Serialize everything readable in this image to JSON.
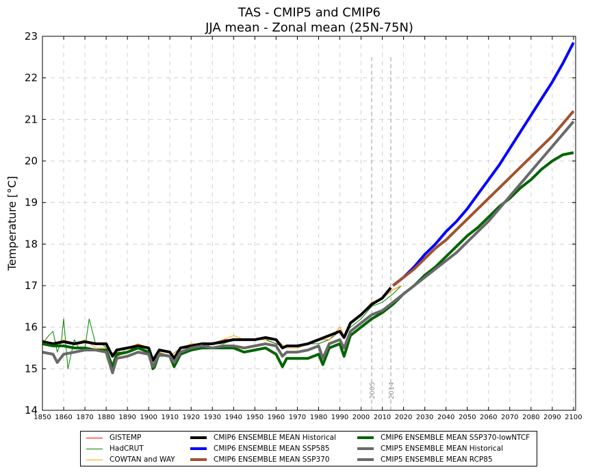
{
  "chart_data": {
    "type": "line",
    "title": "TAS - CMIP5 and CMIP6",
    "subtitle": "JJA mean - Zonal mean (25N-75N)",
    "xlabel": "",
    "ylabel": "Temperature [°C]",
    "xlim": [
      1850,
      2101
    ],
    "ylim": [
      14,
      23
    ],
    "grid": true,
    "x_ticks": [
      "1850",
      "1860",
      "1870",
      "1880",
      "1890",
      "1900",
      "1910",
      "1920",
      "1930",
      "1940",
      "1950",
      "1960",
      "1970",
      "1980",
      "1990",
      "2000",
      "2010",
      "2020",
      "2030",
      "2040",
      "2050",
      "2060",
      "2070",
      "2080",
      "2090",
      "2100"
    ],
    "y_ticks": [
      "14",
      "15",
      "16",
      "17",
      "18",
      "19",
      "20",
      "21",
      "22",
      "23"
    ],
    "vertical_markers": [
      {
        "x": 2005,
        "label": "2005"
      },
      {
        "x": 2014,
        "label": "2014"
      }
    ],
    "legend_position": "below",
    "series": [
      {
        "name": "GISTEMP",
        "color": "#ff0000",
        "style": "thin",
        "x": [
          1880,
          1885,
          1890,
          1895,
          1900,
          1903,
          1905,
          1910,
          1915,
          1920,
          1925,
          1930,
          1935,
          1940,
          1945,
          1950,
          1955,
          1960,
          1965,
          1970,
          1975,
          1980,
          1985,
          1990,
          1992,
          1995,
          2000,
          2005,
          2010,
          2015,
          2019
        ],
        "y": [
          15.5,
          15.3,
          15.4,
          15.6,
          15.5,
          15.1,
          15.4,
          15.3,
          15.5,
          15.5,
          15.6,
          15.6,
          15.7,
          15.7,
          15.7,
          15.7,
          15.7,
          15.6,
          15.5,
          15.5,
          15.6,
          15.7,
          15.7,
          16.0,
          15.8,
          16.1,
          16.3,
          16.6,
          16.7,
          16.9,
          17.0
        ]
      },
      {
        "name": "HadCRUT",
        "color": "#008000",
        "style": "thin",
        "x": [
          1850,
          1853,
          1855,
          1857,
          1859,
          1860,
          1862,
          1865,
          1867,
          1870,
          1872,
          1875,
          1878,
          1880,
          1883,
          1885,
          1890,
          1895,
          1900,
          1903,
          1905,
          1910,
          1915,
          1920,
          1925,
          1930,
          1935,
          1940,
          1945,
          1950,
          1955,
          1960,
          1965,
          1970,
          1975,
          1980,
          1985,
          1990,
          1992,
          1995,
          2000,
          2005,
          2010,
          2015,
          2019
        ],
        "y": [
          15.6,
          15.8,
          15.9,
          15.4,
          15.7,
          16.2,
          15.0,
          15.7,
          15.5,
          15.5,
          16.2,
          15.6,
          15.6,
          15.5,
          15.0,
          15.4,
          15.4,
          15.5,
          15.4,
          15.0,
          15.3,
          15.3,
          15.5,
          15.5,
          15.5,
          15.6,
          15.6,
          15.7,
          15.7,
          15.7,
          15.7,
          15.6,
          15.5,
          15.5,
          15.6,
          15.6,
          15.7,
          15.9,
          15.8,
          16.0,
          16.2,
          16.5,
          16.6,
          16.8,
          17.0
        ]
      },
      {
        "name": "COWTAN and WAY",
        "color": "#ffa500",
        "style": "thin",
        "x": [
          1850,
          1855,
          1860,
          1865,
          1870,
          1875,
          1880,
          1885,
          1890,
          1895,
          1900,
          1903,
          1905,
          1910,
          1915,
          1920,
          1925,
          1930,
          1935,
          1940,
          1945,
          1950,
          1955,
          1960,
          1965,
          1970,
          1975,
          1980,
          1985,
          1990,
          1992,
          1995,
          2000,
          2005,
          2010,
          2015,
          2019
        ],
        "y": [
          15.7,
          15.6,
          15.7,
          15.6,
          15.7,
          15.5,
          15.5,
          15.3,
          15.5,
          15.6,
          15.5,
          15.1,
          15.4,
          15.3,
          15.5,
          15.6,
          15.6,
          15.6,
          15.7,
          15.8,
          15.7,
          15.7,
          15.7,
          15.7,
          15.5,
          15.5,
          15.6,
          15.7,
          15.7,
          16.0,
          15.8,
          16.1,
          16.3,
          16.6,
          16.7,
          16.9,
          17.0
        ]
      },
      {
        "name": "CMIP6 ENSEMBLE MEAN Historical",
        "color": "#000000",
        "style": "thick",
        "x": [
          1850,
          1855,
          1860,
          1865,
          1870,
          1875,
          1880,
          1883,
          1885,
          1890,
          1895,
          1900,
          1902,
          1905,
          1910,
          1912,
          1915,
          1920,
          1925,
          1930,
          1935,
          1940,
          1945,
          1950,
          1955,
          1960,
          1963,
          1965,
          1970,
          1975,
          1980,
          1985,
          1990,
          1992,
          1995,
          2000,
          2005,
          2010,
          2014
        ],
        "y": [
          15.65,
          15.6,
          15.65,
          15.6,
          15.65,
          15.6,
          15.6,
          15.3,
          15.45,
          15.5,
          15.55,
          15.5,
          15.2,
          15.45,
          15.4,
          15.25,
          15.5,
          15.55,
          15.6,
          15.6,
          15.65,
          15.7,
          15.7,
          15.7,
          15.75,
          15.7,
          15.5,
          15.55,
          15.55,
          15.6,
          15.7,
          15.8,
          15.9,
          15.75,
          16.1,
          16.3,
          16.55,
          16.7,
          16.95
        ]
      },
      {
        "name": "CMIP6 ENSEMBLE MEAN SSP585",
        "color": "#0000ff",
        "style": "thick",
        "x": [
          2015,
          2020,
          2025,
          2030,
          2035,
          2040,
          2045,
          2050,
          2055,
          2060,
          2065,
          2070,
          2075,
          2080,
          2085,
          2090,
          2095,
          2100
        ],
        "y": [
          17.0,
          17.2,
          17.45,
          17.75,
          18.0,
          18.3,
          18.55,
          18.85,
          19.2,
          19.55,
          19.9,
          20.3,
          20.7,
          21.1,
          21.5,
          21.9,
          22.35,
          22.85
        ]
      },
      {
        "name": "CMIP6 ENSEMBLE MEAN SSP370",
        "color": "#a0522d",
        "style": "thick",
        "x": [
          2015,
          2020,
          2025,
          2030,
          2035,
          2040,
          2045,
          2050,
          2055,
          2060,
          2065,
          2070,
          2075,
          2080,
          2085,
          2090,
          2095,
          2100
        ],
        "y": [
          17.0,
          17.2,
          17.4,
          17.65,
          17.9,
          18.1,
          18.35,
          18.6,
          18.85,
          19.1,
          19.35,
          19.6,
          19.85,
          20.1,
          20.35,
          20.6,
          20.9,
          21.2
        ]
      },
      {
        "name": "CMIP6 ENSEMBLE MEAN SSP370-lowNTCF",
        "color": "#006400",
        "style": "thick",
        "x": [
          1850,
          1855,
          1860,
          1865,
          1870,
          1875,
          1880,
          1883,
          1885,
          1890,
          1895,
          1900,
          1902,
          1905,
          1910,
          1912,
          1915,
          1920,
          1925,
          1930,
          1935,
          1940,
          1945,
          1950,
          1955,
          1960,
          1963,
          1965,
          1970,
          1975,
          1980,
          1982,
          1985,
          1990,
          1992,
          1995,
          2000,
          2005,
          2010,
          2015,
          2020,
          2025,
          2030,
          2035,
          2040,
          2045,
          2050,
          2055,
          2060,
          2065,
          2070,
          2075,
          2080,
          2085,
          2090,
          2095,
          2100
        ],
        "y": [
          15.6,
          15.55,
          15.55,
          15.5,
          15.5,
          15.45,
          15.45,
          15.05,
          15.35,
          15.4,
          15.5,
          15.4,
          15.0,
          15.35,
          15.3,
          15.05,
          15.35,
          15.45,
          15.5,
          15.5,
          15.5,
          15.5,
          15.4,
          15.45,
          15.5,
          15.35,
          15.05,
          15.25,
          15.25,
          15.25,
          15.35,
          15.1,
          15.5,
          15.6,
          15.3,
          15.8,
          16.0,
          16.2,
          16.35,
          16.55,
          16.8,
          17.0,
          17.25,
          17.45,
          17.7,
          17.95,
          18.2,
          18.4,
          18.65,
          18.9,
          19.1,
          19.35,
          19.55,
          19.8,
          20.0,
          20.15,
          20.2
        ]
      },
      {
        "name": "CMIP5 ENSEMBLE MEAN Historical",
        "color": "#696969",
        "style": "thick",
        "x": [
          1850,
          1855,
          1857,
          1860,
          1865,
          1870,
          1875,
          1880,
          1883,
          1885,
          1890,
          1895,
          1900,
          1902,
          1905,
          1910,
          1912,
          1915,
          1920,
          1925,
          1930,
          1935,
          1940,
          1945,
          1950,
          1955,
          1960,
          1963,
          1965,
          1970,
          1975,
          1980,
          1982,
          1985,
          1990,
          1992,
          1995,
          2000,
          2005
        ],
        "y": [
          15.4,
          15.35,
          15.15,
          15.35,
          15.4,
          15.45,
          15.45,
          15.4,
          14.9,
          15.25,
          15.3,
          15.4,
          15.35,
          15.05,
          15.35,
          15.3,
          15.15,
          15.4,
          15.5,
          15.55,
          15.5,
          15.55,
          15.55,
          15.5,
          15.55,
          15.6,
          15.55,
          15.3,
          15.4,
          15.4,
          15.45,
          15.55,
          15.25,
          15.6,
          15.7,
          15.5,
          15.9,
          16.1,
          16.3
        ]
      },
      {
        "name": "CMIP5 ENSEMBLE MEAN RCP85",
        "color": "#696969",
        "style": "thick",
        "x": [
          2005,
          2010,
          2015,
          2020,
          2025,
          2030,
          2035,
          2040,
          2045,
          2050,
          2055,
          2060,
          2065,
          2070,
          2075,
          2080,
          2085,
          2090,
          2095,
          2100
        ],
        "y": [
          16.3,
          16.4,
          16.6,
          16.8,
          17.0,
          17.2,
          17.4,
          17.6,
          17.8,
          18.05,
          18.3,
          18.55,
          18.85,
          19.15,
          19.45,
          19.75,
          20.05,
          20.35,
          20.65,
          20.95
        ]
      }
    ]
  }
}
